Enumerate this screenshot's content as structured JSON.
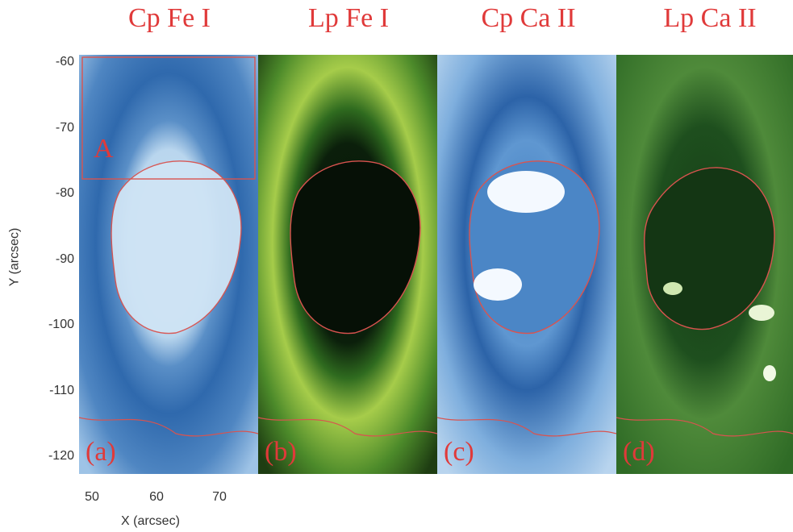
{
  "titles": [
    "Cp Fe I",
    "Lp Fe I",
    "Cp Ca II",
    "Lp Ca II"
  ],
  "panels": [
    {
      "label": "(a)",
      "scheme": "blue"
    },
    {
      "label": "(b)",
      "scheme": "yellow-green"
    },
    {
      "label": "(c)",
      "scheme": "blue"
    },
    {
      "label": "(d)",
      "scheme": "green"
    }
  ],
  "region_label": "A",
  "axis": {
    "y_label": "Y (arcsec)",
    "x_label": "X (arcsec)",
    "y_ticks": [
      "-60",
      "-70",
      "-80",
      "-90",
      "-100",
      "-110",
      "-120"
    ],
    "x_ticks": [
      "50",
      "60",
      "70"
    ]
  },
  "colors": {
    "label_red": "#e03a3a",
    "contour": "#d9534f"
  }
}
